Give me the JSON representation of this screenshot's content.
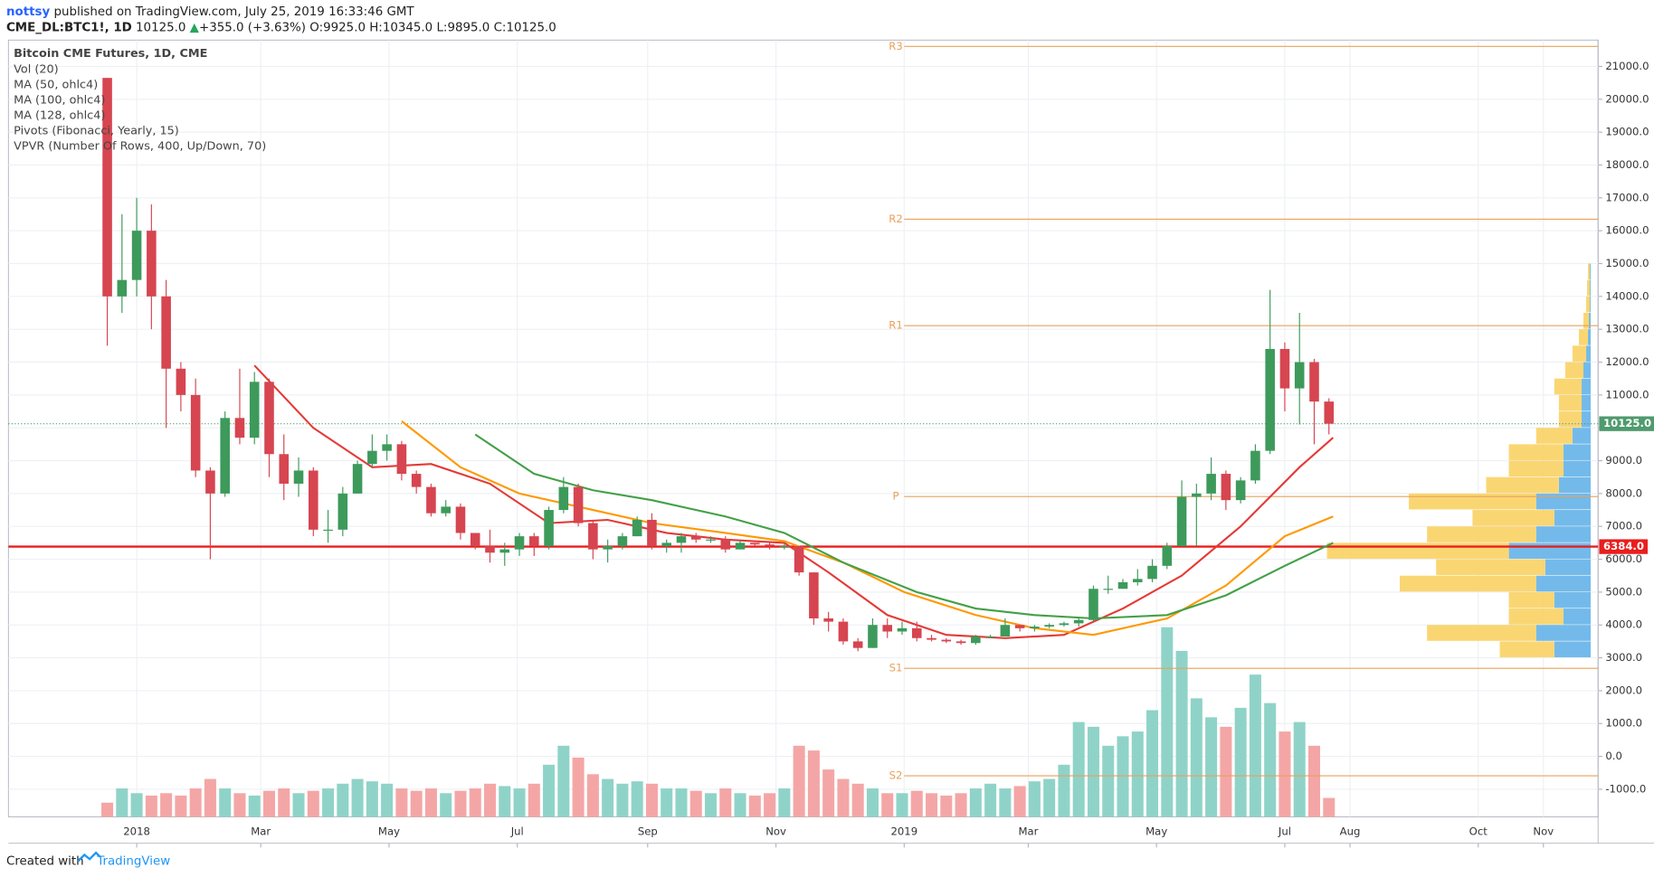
{
  "header": {
    "user": "nottsy",
    "published": "published on TradingView.com, July 25, 2019 16:33:46 GMT",
    "symbol": "CME_DL:BTC1!, 1D",
    "last": "10125.0",
    "arrow": "▲",
    "change": "+355.0 (+3.63%)",
    "open_label": "O:",
    "open": "9925.0",
    "high_label": "H:",
    "high": "10345.0",
    "low_label": "L:",
    "low": "9895.0",
    "close_label": "C:",
    "close": "10125.0"
  },
  "footer": {
    "text": "Created with",
    "brand": "TradingView"
  },
  "chart_data": {
    "type": "candlestick",
    "title": "Bitcoin CME Futures, 1D, CME",
    "indicators": [
      "Vol (20)",
      "MA (50, ohlc4)",
      "MA (100, ohlc4)",
      "MA (128, ohlc4)",
      "Pivots (Fibonacci, Yearly, 15)",
      "VPVR (Number Of Rows, 400, Up/Down, 70)"
    ],
    "up_color": "#3d9a5b",
    "down_color": "#d64550",
    "volume_up_color": "#8fd3c8",
    "volume_down_color": "#f4a6a6",
    "x": [
      "2017-12-18",
      "2017-12-25",
      "2018-01-01",
      "2018-01-08",
      "2018-01-15",
      "2018-01-22",
      "2018-01-29",
      "2018-02-05",
      "2018-02-12",
      "2018-02-19",
      "2018-02-26",
      "2018-03-05",
      "2018-03-12",
      "2018-03-19",
      "2018-03-26",
      "2018-04-02",
      "2018-04-09",
      "2018-04-16",
      "2018-04-23",
      "2018-04-30",
      "2018-05-07",
      "2018-05-14",
      "2018-05-21",
      "2018-05-28",
      "2018-06-04",
      "2018-06-11",
      "2018-06-18",
      "2018-06-25",
      "2018-07-02",
      "2018-07-09",
      "2018-07-16",
      "2018-07-23",
      "2018-07-30",
      "2018-08-06",
      "2018-08-13",
      "2018-08-20",
      "2018-08-27",
      "2018-09-03",
      "2018-09-10",
      "2018-09-17",
      "2018-09-24",
      "2018-10-01",
      "2018-10-08",
      "2018-10-15",
      "2018-10-22",
      "2018-10-29",
      "2018-11-05",
      "2018-11-12",
      "2018-11-19",
      "2018-11-26",
      "2018-12-03",
      "2018-12-10",
      "2018-12-17",
      "2018-12-24",
      "2018-12-31",
      "2019-01-07",
      "2019-01-14",
      "2019-01-21",
      "2019-01-28",
      "2019-02-04",
      "2019-02-11",
      "2019-02-18",
      "2019-02-25",
      "2019-03-04",
      "2019-03-11",
      "2019-03-18",
      "2019-03-25",
      "2019-04-01",
      "2019-04-08",
      "2019-04-15",
      "2019-04-22",
      "2019-04-29",
      "2019-05-06",
      "2019-05-13",
      "2019-05-20",
      "2019-05-27",
      "2019-06-03",
      "2019-06-10",
      "2019-06-17",
      "2019-06-24",
      "2019-07-01",
      "2019-07-08",
      "2019-07-15",
      "2019-07-22"
    ],
    "open": [
      20650,
      14000,
      14500,
      16000,
      14000,
      11800,
      11000,
      8700,
      8000,
      10300,
      9700,
      11400,
      9200,
      8300,
      8700,
      6900,
      6900,
      8000,
      8900,
      9300,
      9500,
      8600,
      8200,
      7400,
      7600,
      6800,
      6400,
      6200,
      6300,
      6700,
      6400,
      7500,
      8200,
      7100,
      6300,
      6400,
      6700,
      7200,
      6400,
      6500,
      6700,
      6600,
      6600,
      6300,
      6500,
      6450,
      6400,
      6400,
      5600,
      4200,
      4100,
      3500,
      3300,
      4000,
      3800,
      3900,
      3600,
      3550,
      3500,
      3450,
      3650,
      3650,
      4000,
      3900,
      3950,
      4000,
      4050,
      4150,
      5100,
      5100,
      5300,
      5400,
      5800,
      6400,
      7900,
      8000,
      8600,
      7800,
      8400,
      9300,
      12400,
      11200,
      12000,
      10800
    ],
    "high": [
      20650,
      16500,
      17000,
      16800,
      14500,
      12000,
      11500,
      8800,
      10500,
      11800,
      11700,
      11500,
      9800,
      9100,
      8800,
      7500,
      8200,
      9000,
      9800,
      9800,
      9600,
      8700,
      8300,
      7800,
      7700,
      6800,
      6900,
      6500,
      6800,
      6800,
      7600,
      8500,
      8300,
      7200,
      6600,
      6800,
      7300,
      7400,
      6600,
      6800,
      6800,
      6700,
      6700,
      6600,
      6500,
      6500,
      6500,
      6400,
      5600,
      4400,
      4200,
      3600,
      4200,
      4200,
      4100,
      4100,
      3700,
      3600,
      3550,
      3700,
      3700,
      4200,
      4000,
      4000,
      4050,
      4100,
      4200,
      5200,
      5500,
      5400,
      5700,
      6000,
      6500,
      8400,
      8300,
      9100,
      8700,
      8500,
      9500,
      14200,
      12600,
      13500,
      12100,
      10900
    ],
    "low": [
      12500,
      13500,
      14000,
      13000,
      10000,
      10500,
      8500,
      6000,
      7900,
      9500,
      9500,
      8500,
      7800,
      7900,
      6700,
      6500,
      6700,
      8000,
      8800,
      9000,
      8400,
      8000,
      7300,
      7300,
      6600,
      6300,
      5900,
      5800,
      6100,
      6100,
      6300,
      7400,
      7000,
      6000,
      5900,
      6300,
      6700,
      6300,
      6200,
      6200,
      6500,
      6500,
      6200,
      6300,
      6400,
      6300,
      6300,
      5500,
      4000,
      3800,
      3400,
      3200,
      3300,
      3600,
      3700,
      3500,
      3500,
      3450,
      3400,
      3400,
      3600,
      3650,
      3800,
      3800,
      3900,
      3950,
      3950,
      4100,
      4950,
      5100,
      5200,
      5300,
      5700,
      6400,
      6400,
      7800,
      7500,
      7700,
      8300,
      9200,
      10500,
      10100,
      9500,
      9800
    ],
    "close": [
      14000,
      14500,
      16000,
      14000,
      11800,
      11000,
      8700,
      8000,
      10300,
      9700,
      11400,
      9200,
      8300,
      8700,
      6900,
      6900,
      8000,
      8900,
      9300,
      9500,
      8600,
      8200,
      7400,
      7600,
      6800,
      6400,
      6200,
      6300,
      6700,
      6400,
      7500,
      8200,
      7100,
      6300,
      6400,
      6700,
      7200,
      6400,
      6500,
      6700,
      6600,
      6600,
      6300,
      6500,
      6450,
      6400,
      6400,
      5600,
      4200,
      4100,
      3500,
      3300,
      4000,
      3800,
      3900,
      3600,
      3550,
      3500,
      3450,
      3650,
      3650,
      4000,
      3900,
      3950,
      4000,
      4050,
      4150,
      5100,
      5100,
      5300,
      5400,
      5800,
      6400,
      7900,
      8000,
      8600,
      7800,
      8400,
      9300,
      12400,
      11200,
      12000,
      10800,
      10125
    ],
    "volume": [
      6,
      12,
      10,
      9,
      10,
      9,
      12,
      16,
      12,
      10,
      9,
      11,
      12,
      10,
      11,
      12,
      14,
      16,
      15,
      14,
      12,
      11,
      12,
      10,
      11,
      12,
      14,
      13,
      12,
      14,
      22,
      30,
      25,
      18,
      16,
      14,
      15,
      14,
      12,
      12,
      11,
      10,
      12,
      10,
      9,
      10,
      12,
      30,
      28,
      20,
      16,
      14,
      12,
      10,
      10,
      11,
      10,
      9,
      10,
      12,
      14,
      12,
      13,
      15,
      16,
      22,
      40,
      38,
      30,
      34,
      36,
      45,
      80,
      70,
      50,
      42,
      38,
      46,
      60,
      48,
      36,
      40,
      30,
      8
    ],
    "ma_lines": [
      {
        "color": "#e53935",
        "x": [
          "2018-02-26",
          "2018-03-26",
          "2018-04-23",
          "2018-05-21",
          "2018-06-18",
          "2018-07-16",
          "2018-08-13",
          "2018-09-10",
          "2018-10-08",
          "2018-11-05",
          "2018-11-26",
          "2018-12-24",
          "2019-01-21",
          "2019-02-18",
          "2019-03-18",
          "2019-04-15",
          "2019-05-13",
          "2019-06-10",
          "2019-07-08",
          "2019-07-24"
        ],
        "values": [
          11900,
          10000,
          8800,
          8900,
          8300,
          7100,
          7200,
          6800,
          6600,
          6500,
          5600,
          4300,
          3700,
          3600,
          3700,
          4500,
          5500,
          7000,
          8800,
          9700
        ]
      },
      {
        "color": "#ff9800",
        "x": [
          "2018-05-07",
          "2018-06-04",
          "2018-07-02",
          "2018-08-06",
          "2018-09-03",
          "2018-10-08",
          "2018-11-05",
          "2018-12-03",
          "2019-01-01",
          "2019-02-04",
          "2019-03-04",
          "2019-04-01",
          "2019-05-06",
          "2019-06-03",
          "2019-07-01",
          "2019-07-24"
        ],
        "values": [
          10200,
          8800,
          8000,
          7500,
          7100,
          6800,
          6550,
          5900,
          5000,
          4300,
          3900,
          3700,
          4200,
          5200,
          6700,
          7300
        ]
      },
      {
        "color": "#43a047",
        "x": [
          "2018-06-11",
          "2018-07-09",
          "2018-08-06",
          "2018-09-03",
          "2018-10-08",
          "2018-11-05",
          "2018-12-03",
          "2019-01-07",
          "2019-02-04",
          "2019-03-04",
          "2019-04-01",
          "2019-05-06",
          "2019-06-03",
          "2019-07-01",
          "2019-07-24"
        ],
        "values": [
          9800,
          8600,
          8100,
          7800,
          7300,
          6800,
          5900,
          5000,
          4500,
          4300,
          4200,
          4300,
          4900,
          5800,
          6500
        ]
      }
    ],
    "pivots": [
      {
        "label": "R3",
        "value": 21610
      },
      {
        "label": "R2",
        "value": 16350
      },
      {
        "label": "R1",
        "value": 13110
      },
      {
        "label": "P",
        "value": 7910
      },
      {
        "label": "S1",
        "value": 2680
      },
      {
        "label": "S2",
        "value": -590
      }
    ],
    "pivot_start": "2019-01-01",
    "pivot_color": "#e8a15a",
    "last_price": {
      "value": 10125,
      "label": "10125.0",
      "color": "#4f9a6e"
    },
    "level_line": {
      "value": 6384,
      "label": "6384.0",
      "color": "#e91e1e"
    },
    "volume_profile": {
      "bins": [
        3000,
        3500,
        4000,
        4500,
        5000,
        5500,
        6000,
        6500,
        7000,
        7500,
        8000,
        8500,
        9000,
        9500,
        10000,
        10500,
        11000,
        11500,
        12000,
        12500,
        13000,
        13500,
        14000,
        14500,
        15000
      ],
      "up": [
        40,
        60,
        30,
        40,
        60,
        50,
        90,
        60,
        40,
        60,
        35,
        30,
        30,
        20,
        10,
        10,
        10,
        8,
        5,
        3,
        2,
        1,
        1,
        1
      ],
      "down": [
        60,
        120,
        60,
        50,
        150,
        120,
        200,
        120,
        90,
        140,
        80,
        60,
        60,
        40,
        25,
        25,
        30,
        20,
        15,
        10,
        6,
        4,
        3,
        2
      ],
      "up_color": "#5aaee8",
      "down_color": "#f9cf5a"
    },
    "xlim": [
      "2017-11-01",
      "2019-11-27"
    ],
    "xticks": [
      {
        "value": "2018-01-01",
        "label": "2018"
      },
      {
        "value": "2018-03-01",
        "label": "Mar"
      },
      {
        "value": "2018-05-01",
        "label": "May"
      },
      {
        "value": "2018-07-01",
        "label": "Jul"
      },
      {
        "value": "2018-09-01",
        "label": "Sep"
      },
      {
        "value": "2018-11-01",
        "label": "Nov"
      },
      {
        "value": "2019-01-01",
        "label": "2019"
      },
      {
        "value": "2019-03-01",
        "label": "Mar"
      },
      {
        "value": "2019-05-01",
        "label": "May"
      },
      {
        "value": "2019-07-01",
        "label": "Jul"
      },
      {
        "value": "2019-08-01",
        "label": "Aug"
      },
      {
        "value": "2019-10-01",
        "label": "Oct"
      },
      {
        "value": "2019-11-01",
        "label": "Nov"
      }
    ],
    "ylim": [
      -1842,
      21802
    ],
    "yticks": [
      {
        "value": -1000,
        "label": "-1000.0"
      },
      {
        "value": 0,
        "label": "0.0"
      },
      {
        "value": 1000,
        "label": "1000.0"
      },
      {
        "value": 2000,
        "label": "2000.0"
      },
      {
        "value": 3000,
        "label": "3000.0"
      },
      {
        "value": 4000,
        "label": "4000.0"
      },
      {
        "value": 5000,
        "label": "5000.0"
      },
      {
        "value": 6000,
        "label": "6000.0"
      },
      {
        "value": 7000,
        "label": "7000.0"
      },
      {
        "value": 8000,
        "label": "8000.0"
      },
      {
        "value": 9000,
        "label": "9000.0"
      },
      {
        "value": 10000,
        "label": "10000.0"
      },
      {
        "value": 11000,
        "label": "11000.0"
      },
      {
        "value": 12000,
        "label": "12000.0"
      },
      {
        "value": 13000,
        "label": "13000.0"
      },
      {
        "value": 14000,
        "label": "14000.0"
      },
      {
        "value": 15000,
        "label": "15000.0"
      },
      {
        "value": 16000,
        "label": "16000.0"
      },
      {
        "value": 17000,
        "label": "17000.0"
      },
      {
        "value": 18000,
        "label": "18000.0"
      },
      {
        "value": 19000,
        "label": "19000.0"
      },
      {
        "value": 20000,
        "label": "20000.0"
      },
      {
        "value": 21000,
        "label": "21000.0"
      }
    ],
    "grid": true
  }
}
